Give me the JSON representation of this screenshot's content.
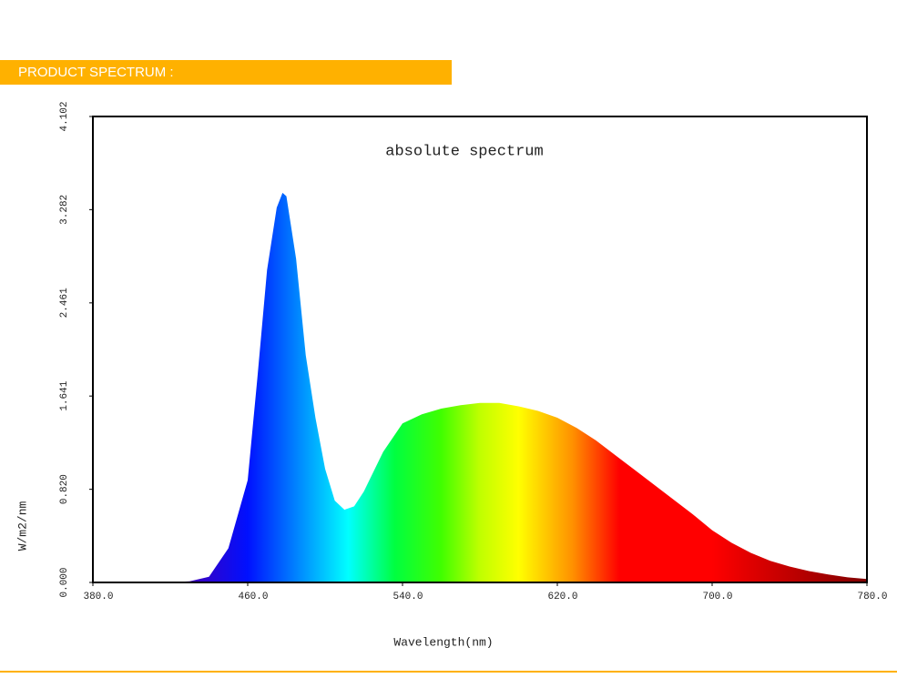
{
  "header": {
    "title": "PRODUCT SPECTRUM :"
  },
  "chart_data": {
    "type": "area",
    "title": "absolute spectrum",
    "x_label": "Wavelength(nm)",
    "y_label": "W/m2/nm",
    "x": [
      380,
      390,
      400,
      410,
      420,
      430,
      440,
      450,
      460,
      465,
      470,
      475,
      478,
      480,
      485,
      490,
      495,
      500,
      505,
      510,
      515,
      520,
      530,
      540,
      550,
      560,
      570,
      580,
      590,
      600,
      610,
      620,
      630,
      640,
      650,
      660,
      670,
      680,
      690,
      700,
      710,
      720,
      730,
      740,
      750,
      760,
      770,
      780
    ],
    "values": [
      0,
      0,
      0,
      0,
      0.002,
      0.01,
      0.05,
      0.3,
      0.9,
      1.8,
      2.75,
      3.3,
      3.43,
      3.4,
      2.85,
      2.0,
      1.45,
      1.0,
      0.72,
      0.64,
      0.67,
      0.8,
      1.15,
      1.4,
      1.48,
      1.53,
      1.56,
      1.58,
      1.58,
      1.55,
      1.51,
      1.45,
      1.36,
      1.25,
      1.12,
      0.99,
      0.86,
      0.73,
      0.6,
      0.46,
      0.35,
      0.26,
      0.19,
      0.14,
      0.1,
      0.07,
      0.045,
      0.03
    ],
    "xlim": [
      380,
      780
    ],
    "xticks": [
      {
        "value": 380,
        "label": "380.0"
      },
      {
        "value": 460,
        "label": "460.0"
      },
      {
        "value": 540,
        "label": "540.0"
      },
      {
        "value": 620,
        "label": "620.0"
      },
      {
        "value": 700,
        "label": "700.0"
      },
      {
        "value": 780,
        "label": "780.0"
      }
    ],
    "ylim": [
      0,
      4.102
    ],
    "yticks": [
      {
        "value": 0,
        "label": "0.000"
      },
      {
        "value": 0.82,
        "label": "0.820"
      },
      {
        "value": 1.641,
        "label": "1.641"
      },
      {
        "value": 2.461,
        "label": "2.461"
      },
      {
        "value": 3.282,
        "label": "3.282"
      },
      {
        "value": 4.102,
        "label": "4.102"
      }
    ],
    "grid": false
  }
}
